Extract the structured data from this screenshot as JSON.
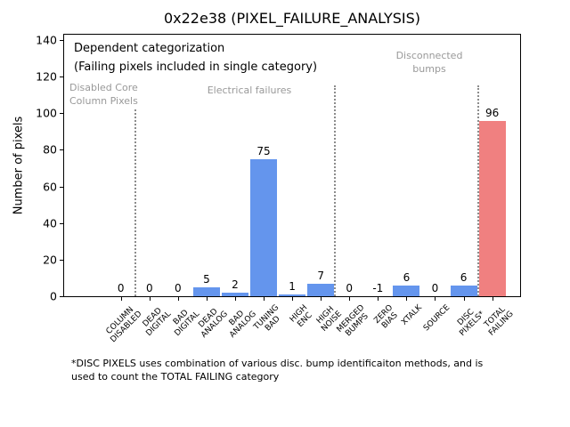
{
  "figure": {
    "footnote_line1": "*DISC PIXELS uses combination of various disc. bump identificaiton methods, and is",
    "footnote_line2": "used to count the TOTAL FAILING category"
  },
  "annotations": {
    "note_line1": "Dependent categorization",
    "note_line2": "(Failing pixels included in single category)"
  },
  "chart_data": {
    "type": "bar",
    "title": "0x22e38 (PIXEL_FAILURE_ANALYSIS)",
    "xlabel": "",
    "ylabel": "Number of pixels",
    "ylim": [
      0,
      140
    ],
    "yticks": [
      0,
      20,
      40,
      60,
      80,
      100,
      120,
      140
    ],
    "grid": false,
    "legend": null,
    "categories": [
      "COLUMN\nDISABLED",
      "DEAD\nDIGITAL",
      "BAD\nDIGITAL",
      "DEAD\nANALOG",
      "BAD\nANALOG",
      "TUNING\nBAD",
      "HIGH\nENC",
      "HIGH\nNOISE",
      "MERGED\nBUMPS",
      "ZERO\nBIAS",
      "XTALK",
      "SOURCE",
      "DISC\nPIXELS*",
      "TOTAL\nFAILING"
    ],
    "values": [
      0,
      0,
      0,
      5,
      2,
      75,
      1,
      7,
      0,
      -1,
      6,
      0,
      6,
      96
    ],
    "bar_colors": [
      "#6495ED",
      "#6495ED",
      "#6495ED",
      "#6495ED",
      "#6495ED",
      "#6495ED",
      "#6495ED",
      "#6495ED",
      "#6495ED",
      "#6495ED",
      "#6495ED",
      "#6495ED",
      "#6495ED",
      "#F08080"
    ],
    "colors": {
      "bar_blue": "#6495ED",
      "bar_red": "#F08080",
      "group_text_gray": "#999999",
      "divider_gray": "#8c8c8c"
    },
    "groups": [
      {
        "label": "Disabled Core\nColumn Pixels",
        "category_range": [
          0,
          0
        ]
      },
      {
        "label": "Electrical failures",
        "category_range": [
          1,
          7
        ]
      },
      {
        "label": "Disconnected\nbumps",
        "category_range": [
          8,
          12
        ]
      }
    ],
    "dividers": [
      {
        "between_indices": [
          0,
          1
        ],
        "top_value": 102
      },
      {
        "between_indices": [
          7,
          8
        ],
        "top_value": 115
      },
      {
        "between_indices": [
          12,
          13
        ],
        "top_value": 115
      }
    ]
  }
}
